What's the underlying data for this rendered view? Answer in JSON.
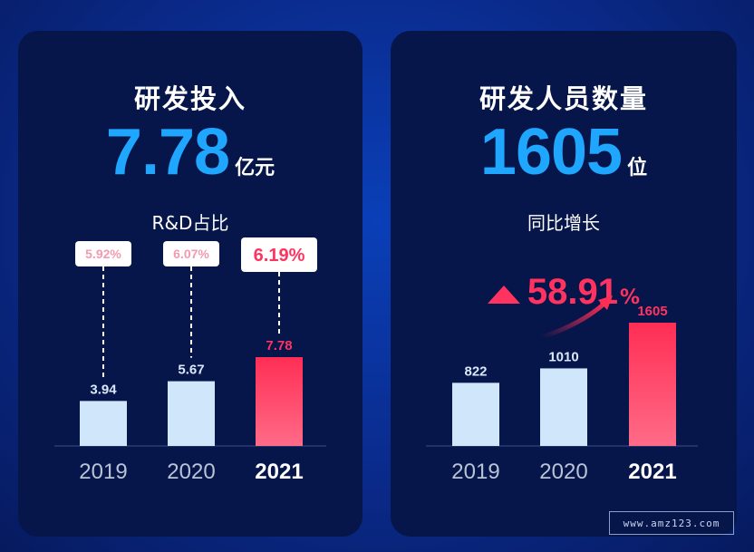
{
  "left_card": {
    "title": "研发投入",
    "big_value": "7.78",
    "big_unit": "亿元",
    "subtitle": "R&D占比"
  },
  "right_card": {
    "title": "研发人员数量",
    "big_value": "1605",
    "big_unit": "位",
    "subtitle": "同比增长",
    "growth_value": "58.91",
    "growth_unit": "%"
  },
  "chart_data": [
    {
      "type": "bar",
      "categories": [
        "2019",
        "2020",
        "2021"
      ],
      "values": [
        3.94,
        5.67,
        7.78
      ],
      "value_labels": [
        "3.94",
        "5.67",
        "7.78"
      ],
      "ratio_labels": [
        "5.92%",
        "6.07%",
        "6.19%"
      ],
      "highlight_index": 2,
      "ylim": [
        0,
        7.78
      ]
    },
    {
      "type": "bar",
      "categories": [
        "2019",
        "2020",
        "2021"
      ],
      "values": [
        822,
        1010,
        1605
      ],
      "value_labels": [
        "822",
        "1010",
        "1605"
      ],
      "highlight_index": 2,
      "ylim": [
        0,
        1605
      ]
    }
  ],
  "colors": {
    "bar_normal": "#cfe6fb",
    "bar_highlight_top": "#ff2e55",
    "bar_highlight_bottom": "#ff6b87",
    "accent_blue": "#1fa6ff",
    "accent_red": "#ff3360",
    "ratio_text_pink": "#f19ab0"
  },
  "watermark": "www.amz123.com"
}
